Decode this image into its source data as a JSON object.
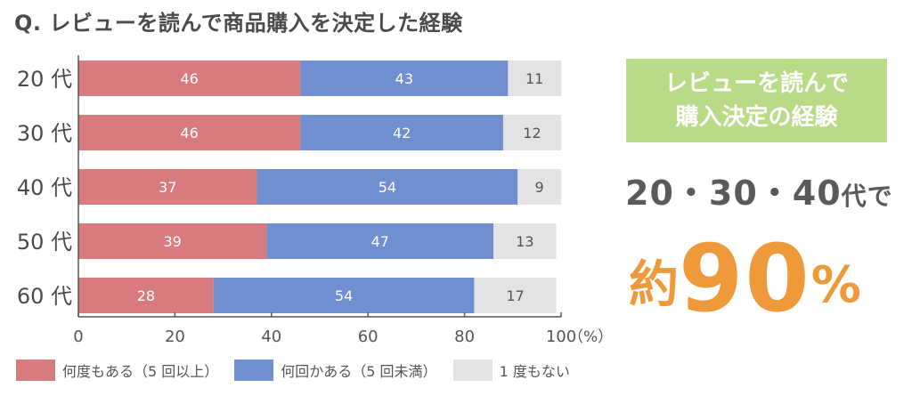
{
  "title": "Q. レビューを読んで商品購入を決定した経験",
  "callout": {
    "line1": "レビューを読んで",
    "line2": "購入決定の経験",
    "ages_main": "20・30・40",
    "ages_suffix": "代で",
    "big_prefix": "約",
    "big_number": "90",
    "big_suffix": "%"
  },
  "chart_data": {
    "type": "bar",
    "orientation": "horizontal",
    "stacked": true,
    "categories": [
      "20 代",
      "30 代",
      "40 代",
      "50 代",
      "60 代"
    ],
    "series": [
      {
        "name": "何度もある（5 回以上）",
        "values": [
          46,
          46,
          37,
          39,
          28
        ],
        "color": "#d77b7f",
        "label_color": "#ffffff"
      },
      {
        "name": "何回かある（5 回未満）",
        "values": [
          43,
          42,
          54,
          47,
          54
        ],
        "color": "#6f8fd1",
        "label_color": "#ffffff"
      },
      {
        "name": "1 度もない",
        "values": [
          11,
          12,
          9,
          13,
          17
        ],
        "color": "#e3e3e3",
        "label_color": "#555555"
      }
    ],
    "x_ticks": [
      "0",
      "20",
      "40",
      "60",
      "80",
      "100"
    ],
    "x_unit": "（%）",
    "xlim": [
      0,
      100
    ],
    "legend_position": "bottom"
  }
}
